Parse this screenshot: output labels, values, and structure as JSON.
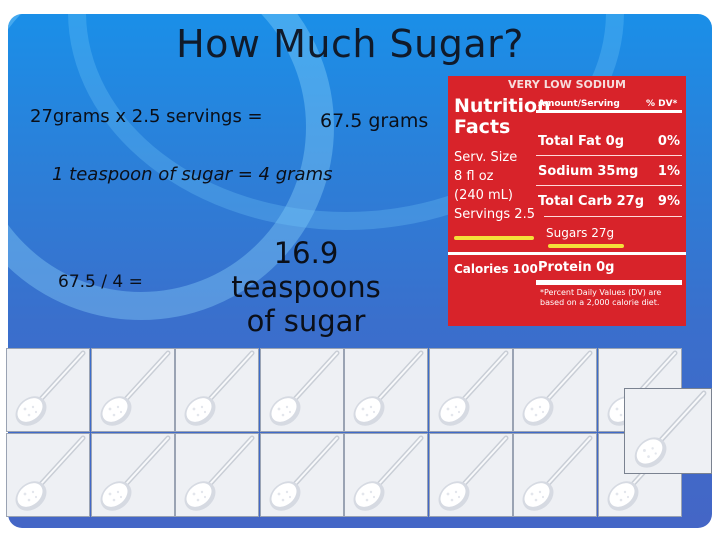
{
  "slide": {
    "title": "How Much Sugar?",
    "line1": "27grams x 2.5 servings =",
    "line1_result": "67.5 grams",
    "line2": "1 teaspoon of sugar = 4 grams",
    "division": "67.5 / 4 =",
    "answer_line1": "16.9 teaspoons",
    "answer_line2": "of sugar"
  },
  "nutrition_label": {
    "banner": "VERY LOW SODIUM",
    "title_1": "Nutrition",
    "title_2": "Facts",
    "amount_header": "Amount/Serving",
    "dv_header": "% DV*",
    "serv_size_1": "Serv. Size",
    "serv_size_2": "8 fl oz",
    "serv_size_3": "(240 mL)",
    "servings": "Servings 2.5",
    "calories": "Calories 100",
    "total_fat": "Total Fat 0g",
    "total_fat_dv": "0%",
    "sodium": "Sodium 35mg",
    "sodium_dv": "1%",
    "total_carb": "Total Carb 27g",
    "total_carb_dv": "9%",
    "sugars": "Sugars 27g",
    "protein": "Protein 0g",
    "footnote": "*Percent Daily Values (DV) are based on a 2,000 calorie diet.",
    "highlight_color": "#f4e03a",
    "label_color": "#d8232a"
  },
  "spoon_images": {
    "icon": "sugar-spoon-icon",
    "count": 17
  }
}
